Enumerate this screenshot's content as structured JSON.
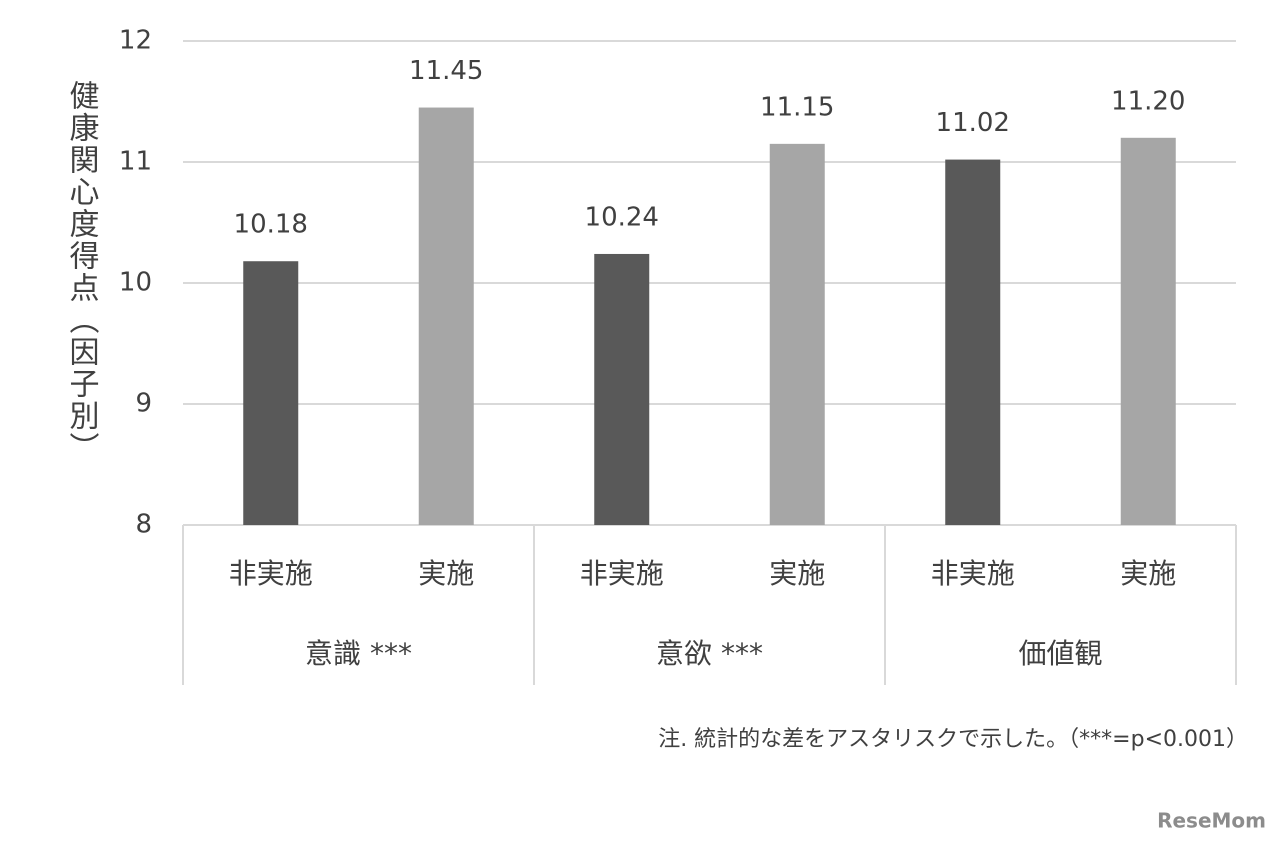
{
  "chart_data": {
    "type": "bar",
    "y_label": "健康関心度得点（因子別）",
    "categories": [
      "非実施",
      "実施",
      "非実施",
      "実施",
      "非実施",
      "実施"
    ],
    "groups": [
      "意識 ***",
      "意欲 ***",
      "価値観"
    ],
    "values": [
      10.18,
      11.45,
      10.24,
      11.15,
      11.02,
      11.2
    ],
    "value_labels": [
      "10.18",
      "11.45",
      "10.24",
      "11.15",
      "11.02",
      "11.20"
    ],
    "colors": [
      "#595959",
      "#a6a6a6",
      "#595959",
      "#a6a6a6",
      "#595959",
      "#a6a6a6"
    ],
    "ylim": [
      8,
      12
    ],
    "yticks": [
      8,
      9,
      10,
      11,
      12
    ],
    "grid": true,
    "note": "注. 統計的な差をアスタリスクで示した。（***=p<0.001）",
    "watermark": "ReseMom"
  }
}
